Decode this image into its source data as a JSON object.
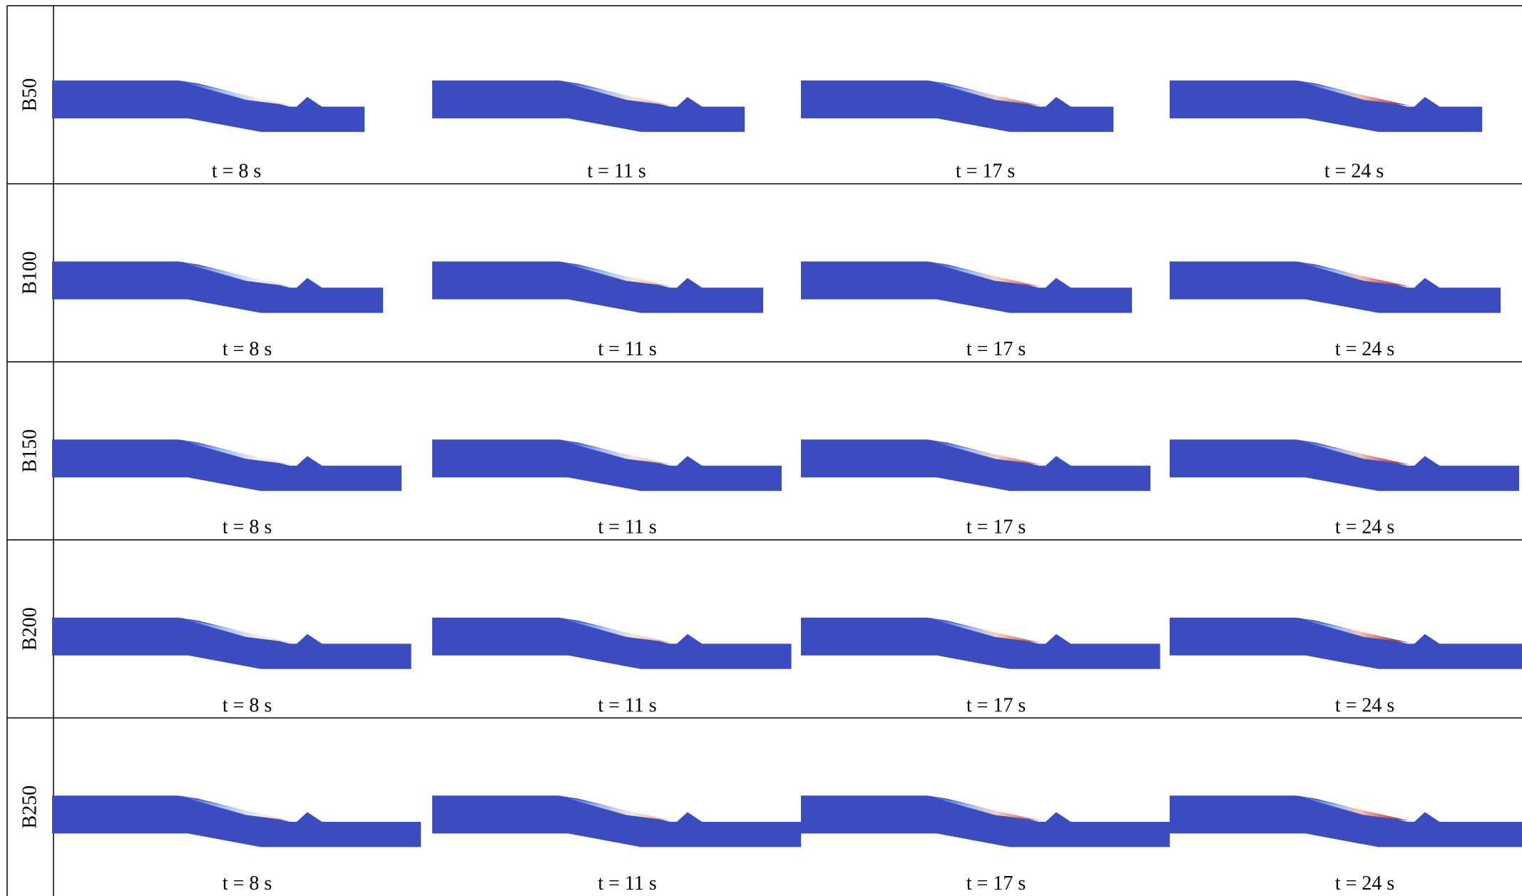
{
  "rows": [
    {
      "label": "B50",
      "captions": [
        "t = 8 s",
        "t = 11 s",
        "t = 17 s",
        "t = 24 s"
      ]
    },
    {
      "label": "B100",
      "captions": [
        "t = 8 s",
        "t = 11 s",
        "t = 17 s",
        "t = 24 s"
      ]
    },
    {
      "label": "B150",
      "captions": [
        "t = 8 s",
        "t = 11 s",
        "t = 17 s",
        "t = 24 s"
      ]
    },
    {
      "label": "B200",
      "captions": [
        "t = 8 s",
        "t = 11 s",
        "t = 17 s",
        "t = 24 s"
      ]
    },
    {
      "label": "B250",
      "captions": [
        "t = 8 s",
        "t = 11 s",
        "t = 17 s",
        "t = 24 s"
      ]
    }
  ]
}
